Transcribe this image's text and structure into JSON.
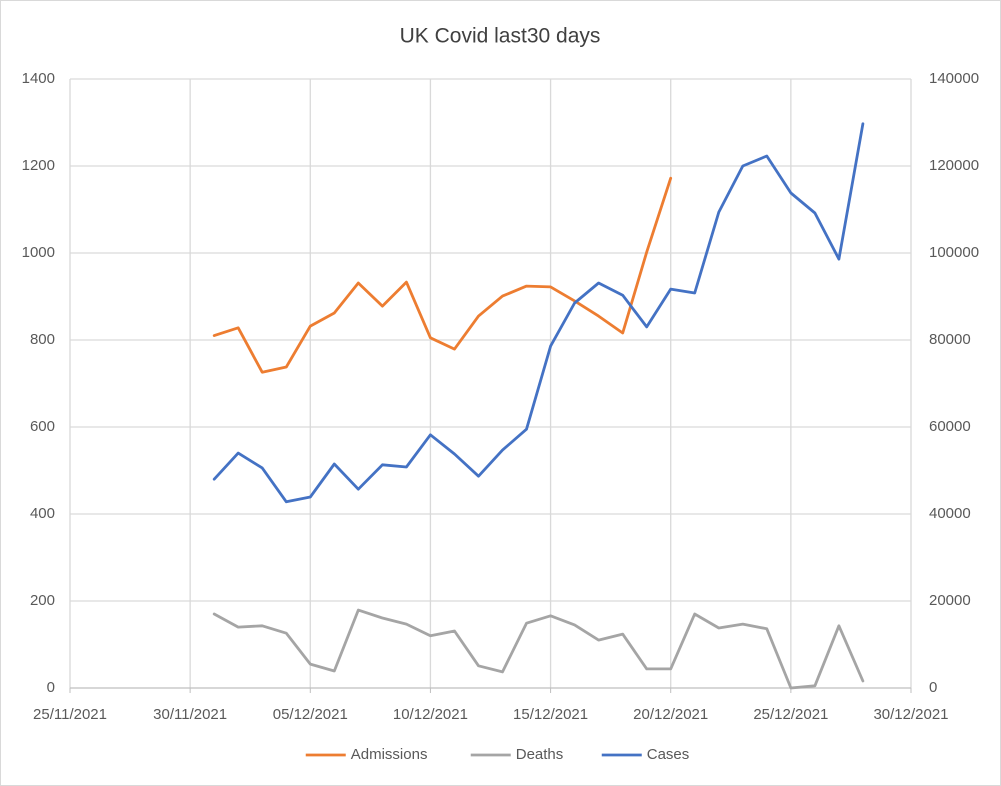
{
  "chart_data": {
    "type": "line",
    "title": "UK Covid last30 days",
    "x": [
      "01/12/2021",
      "02/12/2021",
      "03/12/2021",
      "04/12/2021",
      "05/12/2021",
      "06/12/2021",
      "07/12/2021",
      "08/12/2021",
      "09/12/2021",
      "10/12/2021",
      "11/12/2021",
      "12/12/2021",
      "13/12/2021",
      "14/12/2021",
      "15/12/2021",
      "16/12/2021",
      "17/12/2021",
      "18/12/2021",
      "19/12/2021",
      "20/12/2021",
      "21/12/2021",
      "22/12/2021",
      "23/12/2021",
      "24/12/2021",
      "25/12/2021",
      "26/12/2021",
      "27/12/2021",
      "28/12/2021"
    ],
    "series": [
      {
        "name": "Admissions",
        "color": "#ed7d31",
        "axis": "y",
        "values": [
          810,
          828,
          726,
          738,
          832,
          862,
          931,
          878,
          933,
          805,
          779,
          855,
          901,
          924,
          922,
          890,
          855,
          816,
          1002,
          1172,
          null,
          null,
          null,
          null,
          null,
          null,
          null,
          null
        ]
      },
      {
        "name": "Deaths",
        "color": "#a5a5a5",
        "axis": "y",
        "values": [
          170,
          140,
          143,
          126,
          55,
          39,
          179,
          161,
          147,
          120,
          131,
          51,
          37,
          149,
          166,
          145,
          110,
          124,
          44,
          44,
          170,
          138,
          147,
          136,
          0,
          5,
          143,
          16
        ]
      },
      {
        "name": "Cases",
        "color": "#4472c4",
        "axis": "y2",
        "values": [
          48000,
          54000,
          50600,
          42800,
          43900,
          51500,
          45700,
          51300,
          50800,
          58200,
          53800,
          48700,
          54700,
          59500,
          78600,
          88500,
          93100,
          90300,
          83000,
          91700,
          90800,
          109400,
          120000,
          122300,
          113800,
          109200,
          98600,
          129700
        ]
      }
    ],
    "xlim": [
      "25/11/2021",
      "30/12/2021"
    ],
    "xticks": [
      "25/11/2021",
      "30/11/2021",
      "05/12/2021",
      "10/12/2021",
      "15/12/2021",
      "20/12/2021",
      "25/12/2021",
      "30/12/2021"
    ],
    "ylim": [
      0,
      1400
    ],
    "yticks": [
      0,
      200,
      400,
      600,
      800,
      1000,
      1200,
      1400
    ],
    "y2lim": [
      0,
      140000
    ],
    "y2ticks": [
      0,
      20000,
      40000,
      60000,
      80000,
      100000,
      120000,
      140000
    ],
    "grid": true,
    "legend": "bottom"
  }
}
